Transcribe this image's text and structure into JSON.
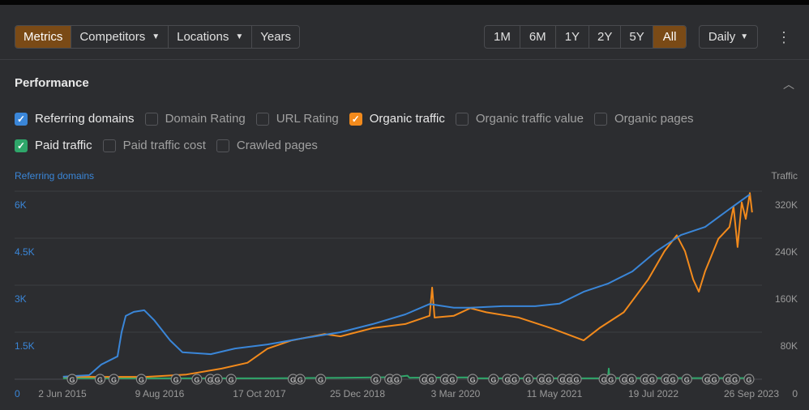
{
  "toolbar": {
    "tabs": [
      {
        "label": "Metrics",
        "active": true
      },
      {
        "label": "Competitors",
        "dropdown": true
      },
      {
        "label": "Locations",
        "dropdown": true
      },
      {
        "label": "Years"
      }
    ],
    "ranges": [
      {
        "label": "1M"
      },
      {
        "label": "6M"
      },
      {
        "label": "1Y"
      },
      {
        "label": "2Y"
      },
      {
        "label": "5Y"
      },
      {
        "label": "All",
        "active": true
      }
    ],
    "interval": "Daily",
    "more_icon": "kebab-icon"
  },
  "section": {
    "title": "Performance",
    "collapse_icon": "chevron-up-icon"
  },
  "metrics": [
    {
      "label": "Referring domains",
      "checked": true,
      "color": "#3a86d8"
    },
    {
      "label": "Domain Rating",
      "checked": false
    },
    {
      "label": "URL Rating",
      "checked": false
    },
    {
      "label": "Organic traffic",
      "checked": true,
      "color": "#f28a1c"
    },
    {
      "label": "Organic traffic value",
      "checked": false
    },
    {
      "label": "Organic pages",
      "checked": false
    },
    {
      "label": "Paid traffic",
      "checked": true,
      "color": "#2fa66a"
    },
    {
      "label": "Paid traffic cost",
      "checked": false
    },
    {
      "label": "Crawled pages",
      "checked": false
    }
  ],
  "chart_data": {
    "type": "line",
    "left_axis": {
      "label": "Referring domains",
      "ticks": [
        "0",
        "1.5K",
        "3K",
        "4.5K",
        "6K"
      ],
      "range": [
        0,
        6000
      ],
      "color": "#3a86d8"
    },
    "right_axis": {
      "label": "Traffic",
      "ticks": [
        "0",
        "80K",
        "160K",
        "240K",
        "320K"
      ],
      "range": [
        0,
        320000
      ]
    },
    "x_ticks": [
      "2 Jun 2015",
      "9 Aug 2016",
      "17 Oct 2017",
      "25 Dec 2018",
      "3 Mar 2020",
      "11 May 2021",
      "19 Jul 2022",
      "26 Sep 2023"
    ],
    "grid": true,
    "series": [
      {
        "name": "Referring domains",
        "axis": "left",
        "color": "#3a86d8",
        "points": [
          [
            "2015-06-05",
            80
          ],
          [
            "2015-09-28",
            130
          ],
          [
            "2015-11-21",
            470
          ],
          [
            "2016-01-31",
            730
          ],
          [
            "2016-02-18",
            1500
          ],
          [
            "2016-03-07",
            2020
          ],
          [
            "2016-04-12",
            2150
          ],
          [
            "2016-05-28",
            2200
          ],
          [
            "2016-07-10",
            1890
          ],
          [
            "2016-09-19",
            1240
          ],
          [
            "2016-11-12",
            860
          ],
          [
            "2017-03-17",
            800
          ],
          [
            "2017-07-02",
            980
          ],
          [
            "2017-11-22",
            1110
          ],
          [
            "2018-04-14",
            1290
          ],
          [
            "2018-10-10",
            1500
          ],
          [
            "2019-03-02",
            1760
          ],
          [
            "2019-07-23",
            2070
          ],
          [
            "2019-11-07",
            2400
          ],
          [
            "2020-02-22",
            2280
          ],
          [
            "2020-05-04",
            2280
          ],
          [
            "2020-09-24",
            2330
          ],
          [
            "2021-02-14",
            2330
          ],
          [
            "2021-06-01",
            2410
          ],
          [
            "2021-09-16",
            2790
          ],
          [
            "2022-01-01",
            3050
          ],
          [
            "2022-04-19",
            3440
          ],
          [
            "2022-08-04",
            4090
          ],
          [
            "2022-11-19",
            4600
          ],
          [
            "2023-03-06",
            4860
          ],
          [
            "2023-06-21",
            5430
          ],
          [
            "2023-09-19",
            5900
          ]
        ]
      },
      {
        "name": "Organic traffic",
        "axis": "right",
        "color": "#f28a1c",
        "points": [
          [
            "2015-06-05",
            4000
          ],
          [
            "2016-06-03",
            4000
          ],
          [
            "2016-11-30",
            8000
          ],
          [
            "2017-05-04",
            18000
          ],
          [
            "2017-08-26",
            28000
          ],
          [
            "2017-11-22",
            52000
          ],
          [
            "2018-03-09",
            66000
          ],
          [
            "2018-08-01",
            77000
          ],
          [
            "2018-10-10",
            73000
          ],
          [
            "2019-03-02",
            87000
          ],
          [
            "2019-07-23",
            94000
          ],
          [
            "2019-11-07",
            108000
          ],
          [
            "2019-11-18",
            156000
          ],
          [
            "2019-11-29",
            105000
          ],
          [
            "2020-02-22",
            108000
          ],
          [
            "2020-05-04",
            121000
          ],
          [
            "2020-07-14",
            114000
          ],
          [
            "2020-12-04",
            105000
          ],
          [
            "2021-04-25",
            87000
          ],
          [
            "2021-09-16",
            66000
          ],
          [
            "2021-11-25",
            87000
          ],
          [
            "2022-03-12",
            114000
          ],
          [
            "2022-06-28",
            170000
          ],
          [
            "2022-09-08",
            218000
          ],
          [
            "2022-11-01",
            245000
          ],
          [
            "2022-12-07",
            218000
          ],
          [
            "2023-01-12",
            170000
          ],
          [
            "2023-02-06",
            149000
          ],
          [
            "2023-03-06",
            184000
          ],
          [
            "2023-05-03",
            239000
          ],
          [
            "2023-06-21",
            259000
          ],
          [
            "2023-07-09",
            294000
          ],
          [
            "2023-07-27",
            225000
          ],
          [
            "2023-08-14",
            301000
          ],
          [
            "2023-09-01",
            273000
          ],
          [
            "2023-09-19",
            317000
          ],
          [
            "2023-09-29",
            284000
          ]
        ]
      },
      {
        "name": "Paid traffic",
        "axis": "right",
        "color": "#2fa66a",
        "points": [
          [
            "2015-06-05",
            1500
          ],
          [
            "2017-11-22",
            1500
          ],
          [
            "2018-10-10",
            2500
          ],
          [
            "2019-06-01",
            3500
          ],
          [
            "2019-08-01",
            6000
          ],
          [
            "2019-08-10",
            2500
          ],
          [
            "2020-05-04",
            3000
          ],
          [
            "2020-06-01",
            1500
          ],
          [
            "2021-12-10",
            1500
          ],
          [
            "2022-01-01",
            2000
          ],
          [
            "2022-01-05",
            18000
          ],
          [
            "2022-01-08",
            2000
          ],
          [
            "2023-09-29",
            2000
          ]
        ]
      }
    ],
    "annotations": {
      "label": "G",
      "dates": [
        "2015-07",
        "2015-11",
        "2016-01",
        "2016-05",
        "2016-10",
        "2017-01",
        "2017-03",
        "2017-04",
        "2017-06",
        "2018-03",
        "2018-04",
        "2018-07",
        "2019-03",
        "2019-05",
        "2019-06",
        "2019-10",
        "2019-11",
        "2020-01",
        "2020-02",
        "2020-05",
        "2020-08",
        "2020-10",
        "2020-11",
        "2021-01",
        "2021-03",
        "2021-04",
        "2021-06",
        "2021-07",
        "2021-08",
        "2021-12",
        "2022-01",
        "2022-03",
        "2022-04",
        "2022-06",
        "2022-07",
        "2022-09",
        "2022-10",
        "2022-12",
        "2023-03",
        "2023-04",
        "2023-06",
        "2023-07",
        "2023-09"
      ]
    }
  }
}
